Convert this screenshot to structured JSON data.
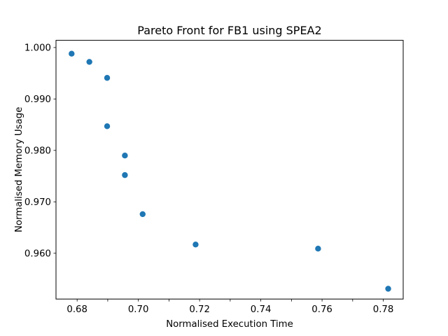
{
  "chart_data": {
    "type": "scatter",
    "title": "Pareto Front for FB1 using SPEA2",
    "xlabel": "Normalised Execution Time",
    "ylabel": "Normalised Memory Usage",
    "xlim": [
      0.6731,
      0.7865
    ],
    "ylim": [
      0.9511,
      1.0014
    ],
    "x_ticks": [
      0.68,
      0.69,
      0.7,
      0.71,
      0.72,
      0.73,
      0.74,
      0.75,
      0.76,
      0.77,
      0.78
    ],
    "x_tick_labels": [
      "0.68",
      "",
      "0.70",
      "",
      "0.72",
      "",
      "0.74",
      "",
      "0.76",
      "",
      "0.78"
    ],
    "y_ticks": [
      0.96,
      0.97,
      0.98,
      0.99,
      1.0
    ],
    "y_tick_labels": [
      "0.960",
      "0.970",
      "0.980",
      "0.990",
      "1.000"
    ],
    "grid": false,
    "series": [
      {
        "color": "#1f77b4",
        "points": [
          {
            "x": 0.6782,
            "y": 0.9988
          },
          {
            "x": 0.684,
            "y": 0.9972
          },
          {
            "x": 0.6898,
            "y": 0.9941
          },
          {
            "x": 0.6898,
            "y": 0.9847
          },
          {
            "x": 0.6956,
            "y": 0.979
          },
          {
            "x": 0.6956,
            "y": 0.9752
          },
          {
            "x": 0.7014,
            "y": 0.9676
          },
          {
            "x": 0.7187,
            "y": 0.9617
          },
          {
            "x": 0.7587,
            "y": 0.9609
          },
          {
            "x": 0.7816,
            "y": 0.9531
          }
        ]
      }
    ]
  }
}
